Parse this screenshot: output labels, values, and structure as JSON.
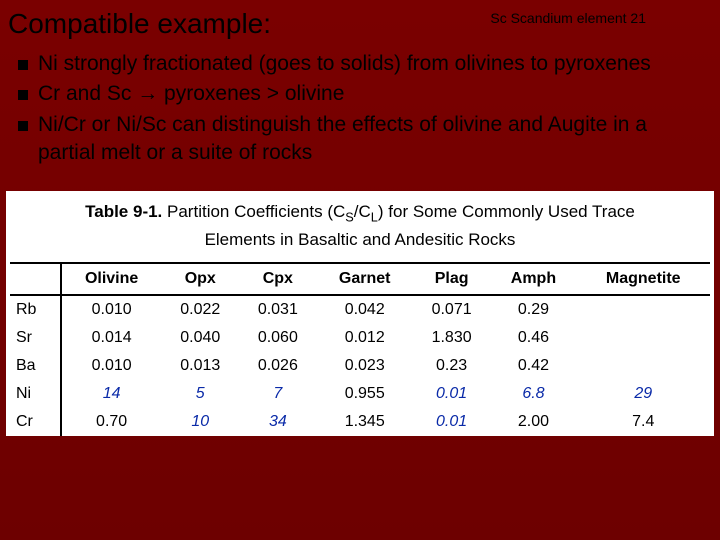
{
  "slide": {
    "title": "Compatible example:",
    "header_note": "Sc Scandium element 21"
  },
  "bullets": [
    "Ni strongly fractionated (goes to solids) from olivines to pyroxenes",
    "Cr and Sc → pyroxenes > olivine",
    "Ni/Cr or Ni/Sc can distinguish the effects of olivine and Augite in a partial melt or a suite of rocks"
  ],
  "table": {
    "caption_label": "Table 9-1.",
    "caption_text_1": "Partition Coefficients (C",
    "caption_sub_1": "S",
    "caption_slash": "/C",
    "caption_sub_2": "L",
    "caption_text_2": ") for Some Commonly Used Trace",
    "caption_line2": "Elements in Basaltic and Andesitic Rocks",
    "columns": [
      "",
      "Olivine",
      "Opx",
      "Cpx",
      "Garnet",
      "Plag",
      "Amph",
      "Magnetite"
    ],
    "rows": [
      {
        "label": "Rb",
        "cells": [
          {
            "v": "0.010",
            "em": false
          },
          {
            "v": "0.022",
            "em": false
          },
          {
            "v": "0.031",
            "em": false
          },
          {
            "v": "0.042",
            "em": false
          },
          {
            "v": "0.071",
            "em": false
          },
          {
            "v": "0.29",
            "em": false
          },
          {
            "v": "",
            "em": false
          }
        ]
      },
      {
        "label": "Sr",
        "cells": [
          {
            "v": "0.014",
            "em": false
          },
          {
            "v": "0.040",
            "em": false
          },
          {
            "v": "0.060",
            "em": false
          },
          {
            "v": "0.012",
            "em": false
          },
          {
            "v": "1.830",
            "em": false
          },
          {
            "v": "0.46",
            "em": false
          },
          {
            "v": "",
            "em": false
          }
        ]
      },
      {
        "label": "Ba",
        "cells": [
          {
            "v": "0.010",
            "em": false
          },
          {
            "v": "0.013",
            "em": false
          },
          {
            "v": "0.026",
            "em": false
          },
          {
            "v": "0.023",
            "em": false
          },
          {
            "v": "0.23",
            "em": false
          },
          {
            "v": "0.42",
            "em": false
          },
          {
            "v": "",
            "em": false
          }
        ]
      },
      {
        "label": "Ni",
        "cells": [
          {
            "v": "14",
            "em": true
          },
          {
            "v": "5",
            "em": true
          },
          {
            "v": "7",
            "em": true
          },
          {
            "v": "0.955",
            "em": false
          },
          {
            "v": "0.01",
            "em": true
          },
          {
            "v": "6.8",
            "em": true
          },
          {
            "v": "29",
            "em": true
          }
        ]
      },
      {
        "label": "Cr",
        "cells": [
          {
            "v": "0.70",
            "em": false
          },
          {
            "v": "10",
            "em": true
          },
          {
            "v": "34",
            "em": true
          },
          {
            "v": "1.345",
            "em": false
          },
          {
            "v": "0.01",
            "em": true
          },
          {
            "v": "2.00",
            "em": false
          },
          {
            "v": "7.4",
            "em": false
          }
        ]
      }
    ]
  }
}
